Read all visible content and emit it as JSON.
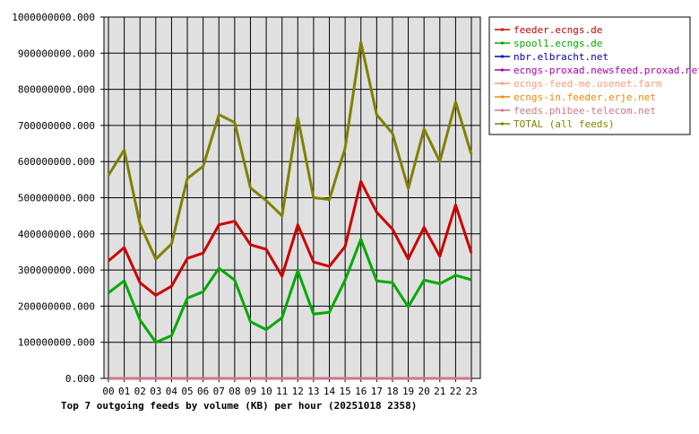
{
  "chart_data": {
    "type": "line",
    "title": "Top 7 outgoing feeds by volume (KB) per hour (20251018 2358)",
    "xlabel": "",
    "ylabel": "",
    "categories": [
      "00",
      "01",
      "02",
      "03",
      "04",
      "05",
      "06",
      "07",
      "08",
      "09",
      "10",
      "11",
      "12",
      "13",
      "14",
      "15",
      "16",
      "17",
      "18",
      "19",
      "20",
      "21",
      "22",
      "23"
    ],
    "y_ticks": [
      "0.000",
      "100000000.000",
      "200000000.000",
      "300000000.000",
      "400000000.000",
      "500000000.000",
      "600000000.000",
      "700000000.000",
      "800000000.000",
      "900000000.000",
      "1000000000.000"
    ],
    "ylim": [
      0,
      1000000000
    ],
    "grid": true,
    "legend_position": "right",
    "plot_background": "#e0e0e0",
    "series": [
      {
        "name": "feeder.ecngs.de",
        "color": "#cc0000",
        "values": [
          325000000,
          362000000,
          265000000,
          230000000,
          255000000,
          332000000,
          347000000,
          425000000,
          435000000,
          370000000,
          357000000,
          283000000,
          425000000,
          322000000,
          310000000,
          365000000,
          545000000,
          460000000,
          413000000,
          330000000,
          418000000,
          338000000,
          480000000,
          347000000
        ]
      },
      {
        "name": "spool1.ecngs.de",
        "color": "#00aa00",
        "values": [
          237000000,
          270000000,
          162000000,
          100000000,
          118000000,
          222000000,
          240000000,
          305000000,
          272000000,
          157000000,
          135000000,
          168000000,
          298000000,
          178000000,
          183000000,
          272000000,
          385000000,
          270000000,
          265000000,
          198000000,
          272000000,
          262000000,
          285000000,
          273000000
        ]
      },
      {
        "name": "nbr.elbracht.net",
        "color": "#0000aa",
        "values": [
          0,
          0,
          0,
          0,
          0,
          0,
          0,
          0,
          0,
          0,
          0,
          0,
          0,
          0,
          0,
          0,
          0,
          0,
          0,
          0,
          0,
          0,
          0,
          0
        ]
      },
      {
        "name": "ecngs-proxad.newsfeed.proxad.net",
        "color": "#aa00aa",
        "values": [
          0,
          0,
          0,
          0,
          0,
          0,
          0,
          0,
          0,
          0,
          0,
          0,
          0,
          0,
          0,
          0,
          0,
          0,
          0,
          0,
          0,
          0,
          0,
          0
        ]
      },
      {
        "name": "ecngs-feed-me.usenet.farm",
        "color": "#ff9977",
        "values": [
          0,
          0,
          0,
          0,
          0,
          0,
          0,
          0,
          0,
          0,
          0,
          0,
          0,
          0,
          0,
          0,
          0,
          0,
          0,
          0,
          0,
          0,
          0,
          0
        ]
      },
      {
        "name": "ecngs-in.feeder.erje.net",
        "color": "#ee8800",
        "values": [
          0,
          0,
          0,
          0,
          0,
          0,
          0,
          0,
          0,
          0,
          0,
          0,
          0,
          0,
          0,
          0,
          0,
          0,
          0,
          0,
          0,
          0,
          0,
          0
        ]
      },
      {
        "name": "feeds.phibee-telecom.net",
        "color": "#cc7788",
        "values": [
          0,
          0,
          0,
          0,
          0,
          0,
          0,
          0,
          0,
          0,
          0,
          0,
          0,
          0,
          0,
          0,
          0,
          0,
          0,
          0,
          0,
          0,
          0,
          0
        ]
      },
      {
        "name": "TOTAL (all feeds)",
        "color": "#808000",
        "values": [
          562000000,
          632000000,
          427000000,
          330000000,
          372000000,
          553000000,
          587000000,
          730000000,
          708000000,
          527000000,
          492000000,
          450000000,
          722000000,
          500000000,
          495000000,
          637000000,
          930000000,
          730000000,
          678000000,
          525000000,
          690000000,
          600000000,
          765000000,
          620000000
        ]
      }
    ]
  }
}
